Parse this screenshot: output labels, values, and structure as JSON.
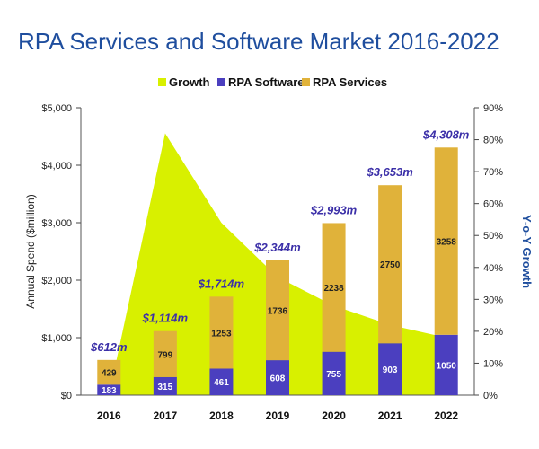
{
  "chart_data": {
    "type": "bar",
    "title": "RPA Services and Software Market 2016-2022",
    "ylabel": "Annual Spend ($million)",
    "y2label": "Y-o-Y Growth",
    "categories": [
      "2016",
      "2017",
      "2018",
      "2019",
      "2020",
      "2021",
      "2022"
    ],
    "ylim": [
      0,
      5000
    ],
    "y_ticks": [
      "$0",
      "$1,000",
      "$2,000",
      "$3,000",
      "$4,000",
      "$5,000"
    ],
    "y2lim": [
      0,
      90
    ],
    "y2_ticks": [
      "0%",
      "10%",
      "20%",
      "30%",
      "40%",
      "50%",
      "60%",
      "70%",
      "80%",
      "90%"
    ],
    "legend": [
      "Growth",
      "RPA Software",
      "RPA Services"
    ],
    "legend_position": "top-center",
    "series": [
      {
        "name": "RPA Software",
        "type": "stacked-bar",
        "color": "#4B3FBF",
        "values": [
          183,
          315,
          461,
          608,
          755,
          903,
          1050
        ]
      },
      {
        "name": "RPA Services",
        "type": "stacked-bar",
        "color": "#E0B23A",
        "values": [
          429,
          799,
          1253,
          1736,
          2238,
          2750,
          3258
        ]
      },
      {
        "name": "Growth",
        "type": "area",
        "axis": "secondary",
        "color": "#D8F000",
        "values": [
          0,
          82,
          54,
          37,
          28,
          22,
          18
        ]
      }
    ],
    "totals": [
      "$612m",
      "$1,114m",
      "$1,714m",
      "$2,344m",
      "$2,993m",
      "$3,653m",
      "$4,308m"
    ]
  }
}
